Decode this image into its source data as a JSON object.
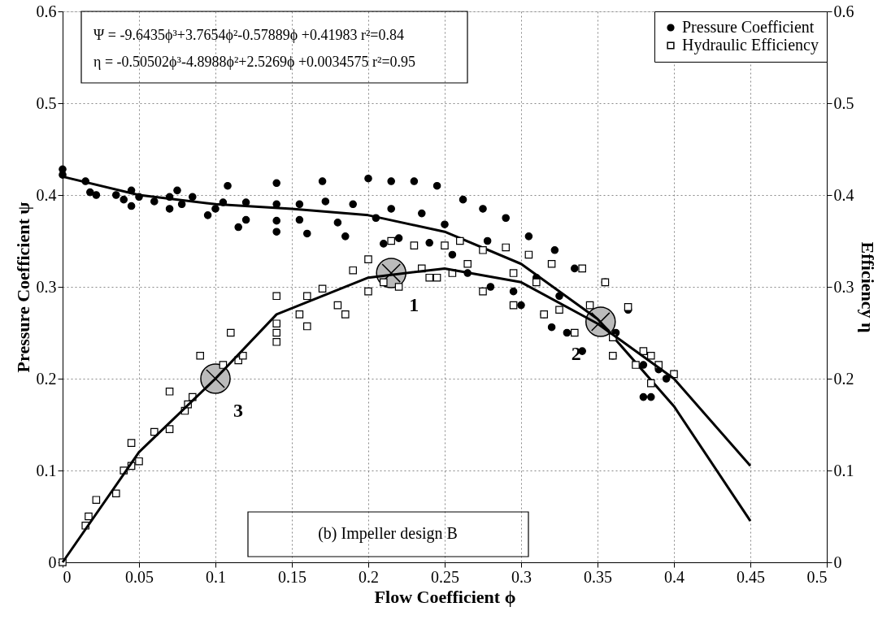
{
  "chart_data": {
    "type": "scatter",
    "xlabel": "Flow Coefficient ϕ",
    "ylabel": "Pressure Coefficient ψ",
    "y2label": "Efficiency η",
    "xlim": [
      0,
      0.5
    ],
    "xticks": [
      0,
      0.05,
      0.1,
      0.15,
      0.2,
      0.25,
      0.3,
      0.35,
      0.4,
      0.45,
      0.5
    ],
    "ylim": [
      0,
      0.6
    ],
    "yticks": [
      0,
      0.1,
      0.2,
      0.3,
      0.4,
      0.5,
      0.6
    ],
    "y2lim": [
      0,
      0.6
    ],
    "y2ticks": [
      0,
      0.1,
      0.2,
      0.3,
      0.4,
      0.5,
      0.6
    ],
    "grid": true,
    "legend": "top right",
    "annotations": [
      "Ψ = -9.6435ϕ³+3.7654ϕ²-0.57889ϕ +0.41983   r²=0.84",
      "η = -0.50502ϕ³-4.8988ϕ²+2.5269ϕ +0.0034575   r²=0.95",
      "(b) Impeller design B",
      {
        "text": "1",
        "x": 0.215,
        "y": 0.315
      },
      {
        "text": "2",
        "x": 0.352,
        "y": 0.262
      },
      {
        "text": "3",
        "x": 0.1,
        "y": 0.2
      }
    ],
    "series": [
      {
        "name": "Pressure Coefficient",
        "marker": "circle",
        "color": "#000000",
        "axis": "y",
        "x": [
          0,
          0,
          0.015,
          0.018,
          0.022,
          0.035,
          0.04,
          0.045,
          0.045,
          0.05,
          0.06,
          0.07,
          0.07,
          0.075,
          0.078,
          0.085,
          0.095,
          0.1,
          0.105,
          0.108,
          0.115,
          0.12,
          0.12,
          0.14,
          0.14,
          0.14,
          0.14,
          0.155,
          0.155,
          0.16,
          0.17,
          0.172,
          0.18,
          0.185,
          0.19,
          0.2,
          0.205,
          0.21,
          0.215,
          0.215,
          0.22,
          0.23,
          0.235,
          0.24,
          0.245,
          0.25,
          0.255,
          0.262,
          0.265,
          0.275,
          0.278,
          0.28,
          0.29,
          0.295,
          0.3,
          0.305,
          0.31,
          0.315,
          0.32,
          0.322,
          0.325,
          0.33,
          0.335,
          0.34,
          0.355,
          0.36,
          0.362,
          0.37,
          0.38,
          0.385,
          0.38,
          0.39,
          0.395
        ],
        "values": [
          0.428,
          0.422,
          0.415,
          0.403,
          0.4,
          0.4,
          0.395,
          0.405,
          0.388,
          0.398,
          0.393,
          0.398,
          0.385,
          0.405,
          0.39,
          0.398,
          0.378,
          0.385,
          0.392,
          0.41,
          0.365,
          0.373,
          0.392,
          0.413,
          0.39,
          0.372,
          0.36,
          0.39,
          0.373,
          0.358,
          0.415,
          0.393,
          0.37,
          0.355,
          0.39,
          0.418,
          0.375,
          0.347,
          0.385,
          0.415,
          0.353,
          0.415,
          0.38,
          0.348,
          0.41,
          0.368,
          0.335,
          0.395,
          0.315,
          0.385,
          0.35,
          0.3,
          0.375,
          0.295,
          0.28,
          0.355,
          0.31,
          0.27,
          0.256,
          0.34,
          0.29,
          0.25,
          0.32,
          0.23,
          0.305,
          0.225,
          0.25,
          0.275,
          0.18,
          0.18,
          0.215,
          0.21,
          0.2
        ]
      },
      {
        "name": "Hydraulic Efficiency",
        "marker": "square",
        "color": "#000000",
        "axis": "y2",
        "x": [
          0,
          0.015,
          0.017,
          0.022,
          0.035,
          0.04,
          0.045,
          0.045,
          0.05,
          0.06,
          0.07,
          0.07,
          0.08,
          0.082,
          0.085,
          0.09,
          0.105,
          0.11,
          0.115,
          0.118,
          0.14,
          0.14,
          0.14,
          0.14,
          0.155,
          0.16,
          0.16,
          0.17,
          0.18,
          0.185,
          0.19,
          0.2,
          0.2,
          0.21,
          0.215,
          0.22,
          0.23,
          0.235,
          0.24,
          0.245,
          0.25,
          0.255,
          0.26,
          0.265,
          0.275,
          0.275,
          0.29,
          0.295,
          0.295,
          0.305,
          0.31,
          0.315,
          0.32,
          0.325,
          0.335,
          0.34,
          0.345,
          0.355,
          0.36,
          0.36,
          0.37,
          0.375,
          0.38,
          0.385,
          0.385,
          0.39,
          0.4
        ],
        "values": [
          0,
          0.04,
          0.05,
          0.068,
          0.075,
          0.1,
          0.105,
          0.13,
          0.11,
          0.142,
          0.145,
          0.186,
          0.165,
          0.172,
          0.18,
          0.225,
          0.215,
          0.25,
          0.22,
          0.225,
          0.29,
          0.26,
          0.25,
          0.24,
          0.27,
          0.257,
          0.29,
          0.298,
          0.28,
          0.27,
          0.318,
          0.33,
          0.295,
          0.305,
          0.35,
          0.3,
          0.345,
          0.32,
          0.31,
          0.31,
          0.345,
          0.315,
          0.35,
          0.325,
          0.34,
          0.295,
          0.343,
          0.315,
          0.28,
          0.335,
          0.305,
          0.27,
          0.325,
          0.275,
          0.25,
          0.32,
          0.28,
          0.305,
          0.225,
          0.245,
          0.278,
          0.215,
          0.23,
          0.225,
          0.195,
          0.215,
          0.205
        ]
      },
      {
        "type": "line",
        "line_style": "solid",
        "color": "#000000",
        "axis": "y",
        "x": [
          0,
          0.05,
          0.1,
          0.15,
          0.2,
          0.25,
          0.3,
          0.35,
          0.4,
          0.45
        ],
        "values": [
          0.42,
          0.4,
          0.39,
          0.385,
          0.378,
          0.36,
          0.325,
          0.265,
          0.17,
          0.045
        ]
      },
      {
        "type": "line",
        "line_style": "solid",
        "color": "#000000",
        "axis": "y2",
        "x": [
          0,
          0.05,
          0.1,
          0.14,
          0.2,
          0.25,
          0.3,
          0.35,
          0.4,
          0.45
        ],
        "values": [
          0,
          0.12,
          0.2,
          0.27,
          0.31,
          0.32,
          0.305,
          0.26,
          0.2,
          0.105
        ]
      }
    ]
  }
}
